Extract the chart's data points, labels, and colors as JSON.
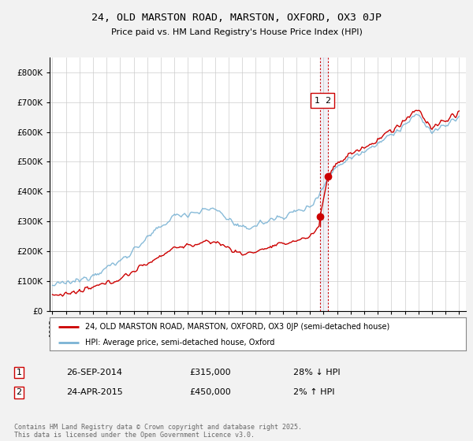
{
  "title": "24, OLD MARSTON ROAD, MARSTON, OXFORD, OX3 0JP",
  "subtitle": "Price paid vs. HM Land Registry's House Price Index (HPI)",
  "legend_line1": "24, OLD MARSTON ROAD, MARSTON, OXFORD, OX3 0JP (semi-detached house)",
  "legend_line2": "HPI: Average price, semi-detached house, Oxford",
  "transaction1_date": "26-SEP-2014",
  "transaction1_price": "£315,000",
  "transaction1_hpi": "28% ↓ HPI",
  "transaction2_date": "24-APR-2015",
  "transaction2_price": "£450,000",
  "transaction2_hpi": "2% ↑ HPI",
  "footer": "Contains HM Land Registry data © Crown copyright and database right 2025.\nThis data is licensed under the Open Government Licence v3.0.",
  "hpi_color": "#7ab3d4",
  "price_color": "#cc0000",
  "vline_color": "#cc0000",
  "ylim": [
    0,
    850000
  ],
  "yticks": [
    0,
    100000,
    200000,
    300000,
    400000,
    500000,
    600000,
    700000,
    800000
  ],
  "background_color": "#f2f2f2",
  "plot_background": "#ffffff",
  "t1_year": 2014.74,
  "t1_price": 315000,
  "t2_year": 2015.32,
  "t2_price": 450000,
  "seed": 12345
}
